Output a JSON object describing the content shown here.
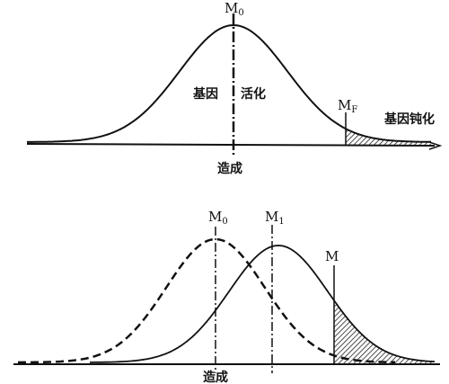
{
  "top": {
    "m0": {
      "main": "M",
      "sub": "0"
    },
    "left_label": "基因",
    "right_label": "活化",
    "mf": {
      "main": "M",
      "sub": "F"
    },
    "tail_label": "基因钝化",
    "axis_label": "造成"
  },
  "bottom": {
    "m0": {
      "main": "M",
      "sub": "0"
    },
    "m1": {
      "main": "M",
      "sub": "1"
    },
    "m": "M",
    "axis_label": "造成"
  }
}
